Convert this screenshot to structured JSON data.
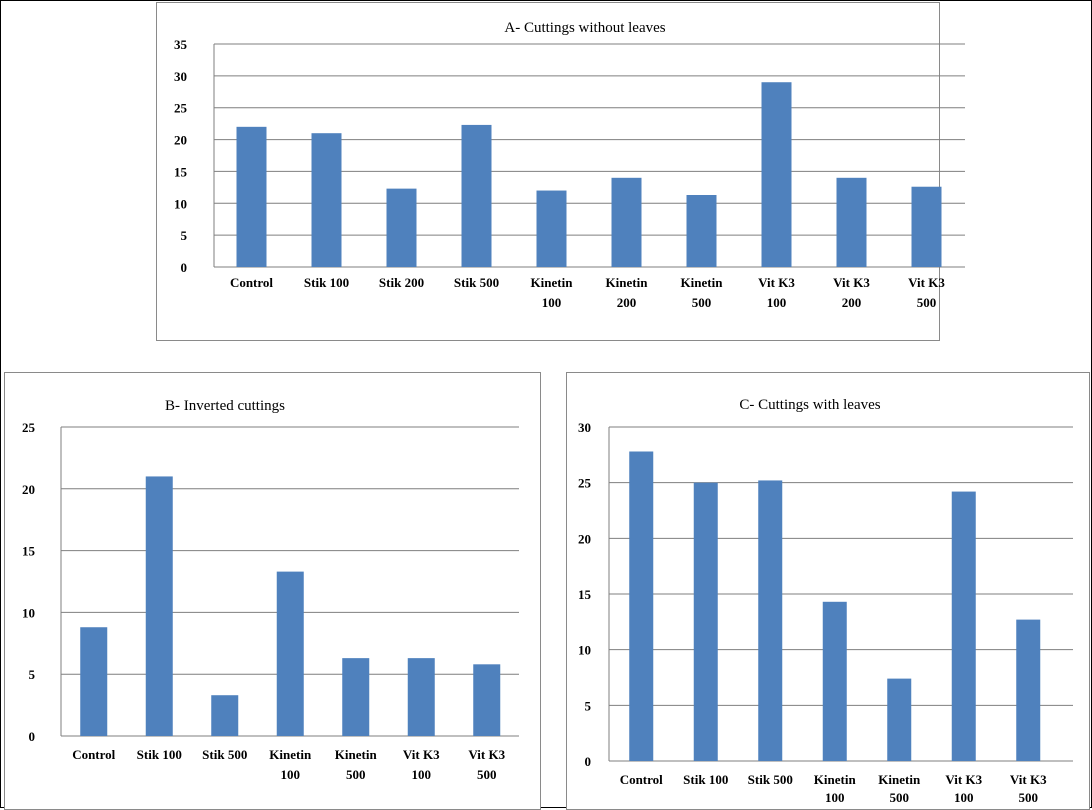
{
  "chart_data": [
    {
      "type": "bar",
      "title": "A- Cuttings without leaves",
      "categories": [
        [
          "Control"
        ],
        [
          "Stik 100"
        ],
        [
          "Stik 200"
        ],
        [
          "Stik 500"
        ],
        [
          "Kinetin",
          "100"
        ],
        [
          "Kinetin",
          "200"
        ],
        [
          "Kinetin",
          "500"
        ],
        [
          "Vit K3",
          "100"
        ],
        [
          "Vit K3",
          "200"
        ],
        [
          "Vit K3",
          "500"
        ]
      ],
      "values": [
        22,
        21,
        12.3,
        22.3,
        12,
        14,
        11.3,
        29,
        14,
        12.6
      ],
      "ylim": [
        0,
        35
      ],
      "yticks": [
        "0",
        "5",
        "10",
        "15",
        "20",
        "25",
        "30",
        "35"
      ],
      "grid": true,
      "color": "#4f81bd"
    },
    {
      "type": "bar",
      "title": "B- Inverted cuttings",
      "categories": [
        [
          "Control"
        ],
        [
          "Stik 100"
        ],
        [
          "Stik 500"
        ],
        [
          "Kinetin",
          "100"
        ],
        [
          "Kinetin",
          "500"
        ],
        [
          "Vit K3",
          "100"
        ],
        [
          "Vit K3",
          "500"
        ]
      ],
      "values": [
        8.8,
        21,
        3.3,
        13.3,
        6.3,
        6.3,
        5.8
      ],
      "ylim": [
        0,
        25
      ],
      "yticks": [
        "0",
        "5",
        "10",
        "15",
        "20",
        "25"
      ],
      "grid": true,
      "color": "#4f81bd"
    },
    {
      "type": "bar",
      "title": "C- Cuttings  with leaves",
      "categories": [
        [
          "Control"
        ],
        [
          "Stik 100"
        ],
        [
          "Stik 500"
        ],
        [
          "Kinetin",
          "100"
        ],
        [
          "Kinetin",
          "500"
        ],
        [
          "Vit K3",
          "100"
        ],
        [
          "Vit K3",
          "500"
        ]
      ],
      "values": [
        27.8,
        25,
        25.2,
        14.3,
        7.4,
        24.2,
        12.7
      ],
      "ylim": [
        0,
        30
      ],
      "yticks": [
        "0",
        "5",
        "10",
        "15",
        "20",
        "25",
        "30"
      ],
      "grid": true,
      "color": "#4f81bd"
    }
  ]
}
